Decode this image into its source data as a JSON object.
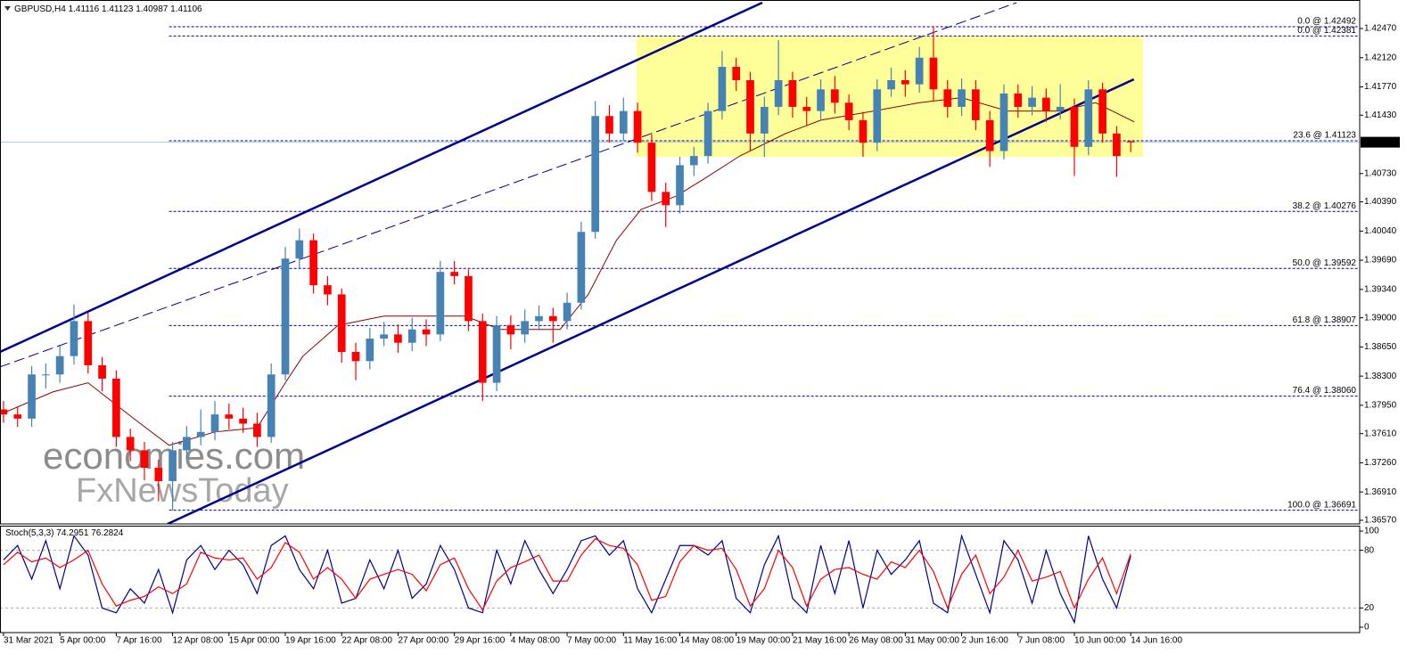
{
  "chart_data": [
    {
      "type": "candlestick",
      "symbol": "GBPUSD,H4",
      "up_color": "#4682b4",
      "down_color": "#ff0000",
      "xlim": [
        -1,
        385
      ],
      "ylim": [
        1.36527,
        1.42812
      ],
      "x": [
        0,
        4,
        8,
        12,
        16,
        20,
        24,
        28,
        32,
        36,
        40,
        44,
        48,
        52,
        56,
        60,
        64,
        68,
        72,
        76,
        80,
        84,
        88,
        92,
        96,
        100,
        104,
        108,
        112,
        116,
        120,
        124,
        128,
        132,
        136,
        140,
        144,
        148,
        152,
        156,
        160,
        164,
        168,
        172,
        176,
        180,
        184,
        188,
        192,
        196,
        200,
        204,
        208,
        212,
        216,
        220,
        224,
        228,
        232,
        236,
        240,
        244,
        248,
        252,
        256,
        260,
        264,
        268,
        272,
        276,
        280,
        284,
        288,
        292,
        296,
        300,
        304,
        308,
        312,
        316,
        320
      ],
      "open": [
        1.379,
        1.3784,
        1.3779,
        1.3832,
        1.3832,
        1.3854,
        1.3896,
        1.3843,
        1.3827,
        1.3757,
        1.3741,
        1.372,
        1.3704,
        1.3741,
        1.3757,
        1.3763,
        1.3784,
        1.3779,
        1.3773,
        1.3757,
        1.3832,
        1.3971,
        1.3993,
        1.3939,
        1.3928,
        1.3859,
        1.3848,
        1.3875,
        1.388,
        1.387,
        1.3886,
        1.388,
        1.3955,
        1.395,
        1.3896,
        1.3822,
        1.3891,
        1.388,
        1.3896,
        1.3902,
        1.3896,
        1.3918,
        1.4003,
        1.4142,
        1.4121,
        1.4148,
        1.411,
        1.4051,
        1.4035,
        1.4083,
        1.4094,
        1.4148,
        1.4201,
        1.4185,
        1.4121,
        1.4153,
        1.4185,
        1.4153,
        1.4148,
        1.4174,
        1.4158,
        1.4137,
        1.411,
        1.4174,
        1.4185,
        1.418,
        1.4212,
        1.4174,
        1.4153,
        1.4174,
        1.4137,
        1.41,
        1.4169,
        1.4153,
        1.4164,
        1.4148,
        1.4153,
        1.4105,
        1.4174,
        1.4121,
        1.41116
      ],
      "high": [
        1.38,
        1.3794,
        1.3842,
        1.3845,
        1.3866,
        1.3916,
        1.3906,
        1.3853,
        1.3837,
        1.3767,
        1.3751,
        1.373,
        1.3751,
        1.377,
        1.379,
        1.38,
        1.3797,
        1.3792,
        1.3786,
        1.3845,
        1.3985,
        1.4007,
        1.4001,
        1.395,
        1.3935,
        1.387,
        1.3888,
        1.3895,
        1.3892,
        1.39,
        1.3898,
        1.3968,
        1.3968,
        1.3958,
        1.3905,
        1.3902,
        1.3903,
        1.391,
        1.3915,
        1.3912,
        1.393,
        1.4015,
        1.416,
        1.4155,
        1.4164,
        1.4158,
        1.412,
        1.4062,
        1.4093,
        1.4105,
        1.4158,
        1.422,
        1.4212,
        1.4195,
        1.4165,
        1.4233,
        1.4195,
        1.4165,
        1.4186,
        1.419,
        1.4168,
        1.4147,
        1.4186,
        1.42,
        1.4197,
        1.4225,
        1.4249,
        1.4185,
        1.4187,
        1.4185,
        1.4148,
        1.418,
        1.418,
        1.4178,
        1.4175,
        1.418,
        1.4163,
        1.4185,
        1.4182,
        1.413,
        1.41123
      ],
      "low": [
        1.3774,
        1.3769,
        1.3769,
        1.3815,
        1.3822,
        1.3844,
        1.3833,
        1.3812,
        1.3745,
        1.3728,
        1.3705,
        1.368,
        1.3669,
        1.3731,
        1.3747,
        1.3753,
        1.3766,
        1.3762,
        1.3745,
        1.375,
        1.3825,
        1.396,
        1.3929,
        1.3915,
        1.3846,
        1.3825,
        1.3838,
        1.3866,
        1.3858,
        1.386,
        1.3866,
        1.3872,
        1.394,
        1.3884,
        1.38,
        1.3812,
        1.3862,
        1.387,
        1.3885,
        1.387,
        1.3886,
        1.391,
        1.3995,
        1.411,
        1.4112,
        1.4098,
        1.404,
        1.4009,
        1.4025,
        1.407,
        1.4085,
        1.4138,
        1.4172,
        1.41,
        1.4093,
        1.4143,
        1.414,
        1.413,
        1.4138,
        1.4145,
        1.4125,
        1.4093,
        1.41,
        1.4165,
        1.4165,
        1.417,
        1.416,
        1.414,
        1.4142,
        1.4125,
        1.4081,
        1.409,
        1.414,
        1.4143,
        1.4135,
        1.4138,
        1.407,
        1.4095,
        1.411,
        1.4069,
        1.40987
      ],
      "close": [
        1.3784,
        1.3779,
        1.3832,
        1.3832,
        1.3854,
        1.3896,
        1.3843,
        1.3827,
        1.3757,
        1.3741,
        1.372,
        1.3704,
        1.3741,
        1.3757,
        1.3763,
        1.3784,
        1.3779,
        1.3773,
        1.3757,
        1.3832,
        1.3971,
        1.3993,
        1.3939,
        1.3928,
        1.3859,
        1.3848,
        1.3875,
        1.388,
        1.387,
        1.3886,
        1.388,
        1.3955,
        1.395,
        1.3896,
        1.3822,
        1.3891,
        1.388,
        1.3896,
        1.3902,
        1.3896,
        1.3918,
        1.4003,
        1.4142,
        1.4121,
        1.4148,
        1.411,
        1.4051,
        1.4035,
        1.4083,
        1.4094,
        1.4148,
        1.4201,
        1.4185,
        1.4121,
        1.4153,
        1.4185,
        1.4153,
        1.4148,
        1.4174,
        1.4158,
        1.4137,
        1.411,
        1.4174,
        1.4185,
        1.418,
        1.4212,
        1.4174,
        1.4153,
        1.4174,
        1.4137,
        1.41,
        1.4169,
        1.4153,
        1.4164,
        1.4148,
        1.4153,
        1.4105,
        1.4174,
        1.4121,
        1.4094,
        1.41106
      ],
      "yticks": [
        {
          "value": 1.4247,
          "label": "1.42470"
        },
        {
          "value": 1.4212,
          "label": "1.42120"
        },
        {
          "value": 1.4177,
          "label": "1.41770"
        },
        {
          "value": 1.4143,
          "label": "1.41430"
        },
        {
          "value": 1.4073,
          "label": "1.40730"
        },
        {
          "value": 1.4039,
          "label": "1.40390"
        },
        {
          "value": 1.4004,
          "label": "1.40040"
        },
        {
          "value": 1.3969,
          "label": "1.39690"
        },
        {
          "value": 1.3934,
          "label": "1.39340"
        },
        {
          "value": 1.39,
          "label": "1.39000"
        },
        {
          "value": 1.3865,
          "label": "1.38650"
        },
        {
          "value": 1.383,
          "label": "1.38300"
        },
        {
          "value": 1.3795,
          "label": "1.37950"
        },
        {
          "value": 1.3761,
          "label": "1.37610"
        },
        {
          "value": 1.3726,
          "label": "1.37260"
        },
        {
          "value": 1.3691,
          "label": "1.36910"
        },
        {
          "value": 1.3657,
          "label": "1.36570"
        }
      ],
      "xticks": [
        {
          "value": 0,
          "label": "31 Mar 2021"
        },
        {
          "value": 16,
          "label": "5 Apr 00:00"
        },
        {
          "value": 32,
          "label": "7 Apr 16:00"
        },
        {
          "value": 48,
          "label": "12 Apr 08:00"
        },
        {
          "value": 64,
          "label": "15 Apr 00:00"
        },
        {
          "value": 80,
          "label": "19 Apr 16:00"
        },
        {
          "value": 96,
          "label": "22 Apr 08:00"
        },
        {
          "value": 112,
          "label": "27 Apr 00:00"
        },
        {
          "value": 128,
          "label": "29 Apr 16:00"
        },
        {
          "value": 144,
          "label": "4 May 08:00"
        },
        {
          "value": 160,
          "label": "7 May 00:00"
        },
        {
          "value": 176,
          "label": "11 May 16:00"
        },
        {
          "value": 192,
          "label": "14 May 08:00"
        },
        {
          "value": 208,
          "label": "19 May 00:00"
        },
        {
          "value": 224,
          "label": "21 May 16:00"
        },
        {
          "value": 240,
          "label": "26 May 08:00"
        },
        {
          "value": 256,
          "label": "31 May 00:00"
        },
        {
          "value": 272,
          "label": "2 Jun 16:00"
        },
        {
          "value": 288,
          "label": "7 Jun 08:00"
        },
        {
          "value": 304,
          "label": "10 Jun 00:00"
        },
        {
          "value": 320,
          "label": "14 Jun 16:00"
        }
      ],
      "ma": {
        "color": "#8b0000",
        "x": [
          -1,
          14,
          24,
          37,
          47,
          60,
          72,
          80,
          85,
          95,
          108,
          131,
          141,
          158,
          166,
          174,
          181,
          191,
          199,
          209,
          222,
          232,
          247,
          260,
          272,
          285,
          300,
          310,
          321
        ],
        "values": [
          1.3784,
          1.3811,
          1.3822,
          1.3779,
          1.3747,
          1.3763,
          1.3768,
          1.3822,
          1.3854,
          1.3891,
          1.3902,
          1.3902,
          1.3886,
          1.3886,
          1.3928,
          1.3993,
          1.403,
          1.4046,
          1.4067,
          1.4094,
          1.4121,
          1.4137,
          1.4148,
          1.4158,
          1.4164,
          1.4148,
          1.4148,
          1.4158,
          1.4135
        ]
      },
      "lines": [
        {
          "x": [
            -1,
            215.4
          ],
          "y": [
            1.3859,
            1.4278
          ],
          "color": "#00008b",
          "width": 2.5,
          "dash": false
        },
        {
          "x": [
            46.6,
            320.9
          ],
          "y": [
            1.36527,
            1.4186
          ],
          "color": "#00008b",
          "width": 2.5,
          "dash": false
        },
        {
          "x": [
            -1,
            287.6
          ],
          "y": [
            1.3841,
            1.4278
          ],
          "color": "#00008b",
          "width": 1,
          "dash": true
        }
      ],
      "rectangle": {
        "x": [
          179.7,
          323.5
        ],
        "y": [
          1.4093,
          1.42381
        ],
        "color": "#ffff99"
      },
      "fib": {
        "color": "#00008b",
        "x_start": 47,
        "levels": [
          {
            "value": 1.42492,
            "label": "0.0 @ 1.42492"
          },
          {
            "value": 1.42381,
            "label": "0.0 @ 1.42381"
          },
          {
            "value": 1.41123,
            "label": "23.6 @ 1.41123"
          },
          {
            "value": 1.40276,
            "label": "38.2 @ 1.40276"
          },
          {
            "value": 1.39592,
            "label": "50.0 @ 1.39592"
          },
          {
            "value": 1.38907,
            "label": "61.8 @ 1.38907"
          },
          {
            "value": 1.3806,
            "label": "76.4 @ 1.38060"
          },
          {
            "value": 1.36691,
            "label": "100.0 @ 1.36691"
          }
        ]
      },
      "price_line_color": "#a9c8e6",
      "watermark": [
        "economies.com",
        "FxNewsToday"
      ]
    },
    {
      "type": "line",
      "title": "Stoch(5,3,3)",
      "xlim": [
        -1,
        385
      ],
      "ylim": [
        -5.6,
        105.6
      ],
      "yticks": [
        0,
        20,
        80,
        100
      ],
      "levels": [
        20,
        80
      ],
      "x": [
        0,
        4,
        8,
        12,
        16,
        20,
        24,
        28,
        32,
        36,
        40,
        44,
        48,
        52,
        56,
        60,
        64,
        68,
        72,
        76,
        80,
        84,
        88,
        92,
        96,
        100,
        104,
        108,
        112,
        116,
        120,
        124,
        128,
        132,
        136,
        140,
        144,
        148,
        152,
        156,
        160,
        164,
        168,
        172,
        176,
        180,
        184,
        188,
        192,
        196,
        200,
        204,
        208,
        212,
        216,
        220,
        224,
        228,
        232,
        236,
        240,
        244,
        248,
        252,
        256,
        260,
        264,
        268,
        272,
        276,
        280,
        284,
        288,
        292,
        296,
        300,
        304,
        308,
        312,
        316,
        320
      ],
      "series": [
        {
          "color": "#00008b",
          "values": [
            70,
            85,
            50,
            90,
            40,
            95,
            75,
            20,
            15,
            40,
            25,
            60,
            15,
            70,
            85,
            60,
            80,
            65,
            35,
            85,
            95,
            60,
            40,
            80,
            25,
            30,
            70,
            40,
            80,
            30,
            45,
            85,
            60,
            20,
            15,
            80,
            45,
            90,
            60,
            35,
            60,
            90,
            95,
            75,
            90,
            40,
            15,
            50,
            85,
            85,
            75,
            90,
            30,
            15,
            65,
            95,
            30,
            15,
            85,
            35,
            90,
            20,
            80,
            55,
            70,
            90,
            25,
            15,
            95,
            55,
            15,
            90,
            70,
            25,
            80,
            35,
            5,
            95,
            50,
            20,
            74.2951
          ]
        },
        {
          "color": "#ff0000",
          "values": [
            65,
            78,
            68,
            72,
            62,
            70,
            80,
            45,
            22,
            28,
            32,
            42,
            35,
            45,
            78,
            72,
            70,
            72,
            50,
            62,
            88,
            78,
            50,
            62,
            50,
            30,
            50,
            55,
            60,
            55,
            38,
            65,
            72,
            40,
            18,
            48,
            62,
            68,
            75,
            48,
            48,
            75,
            92,
            85,
            82,
            65,
            28,
            32,
            68,
            85,
            80,
            82,
            60,
            22,
            40,
            80,
            62,
            22,
            50,
            60,
            62,
            55,
            50,
            68,
            62,
            80,
            58,
            20,
            55,
            75,
            35,
            52,
            80,
            48,
            52,
            58,
            20,
            50,
            72,
            35,
            76.2824
          ]
        }
      ]
    }
  ]
}
